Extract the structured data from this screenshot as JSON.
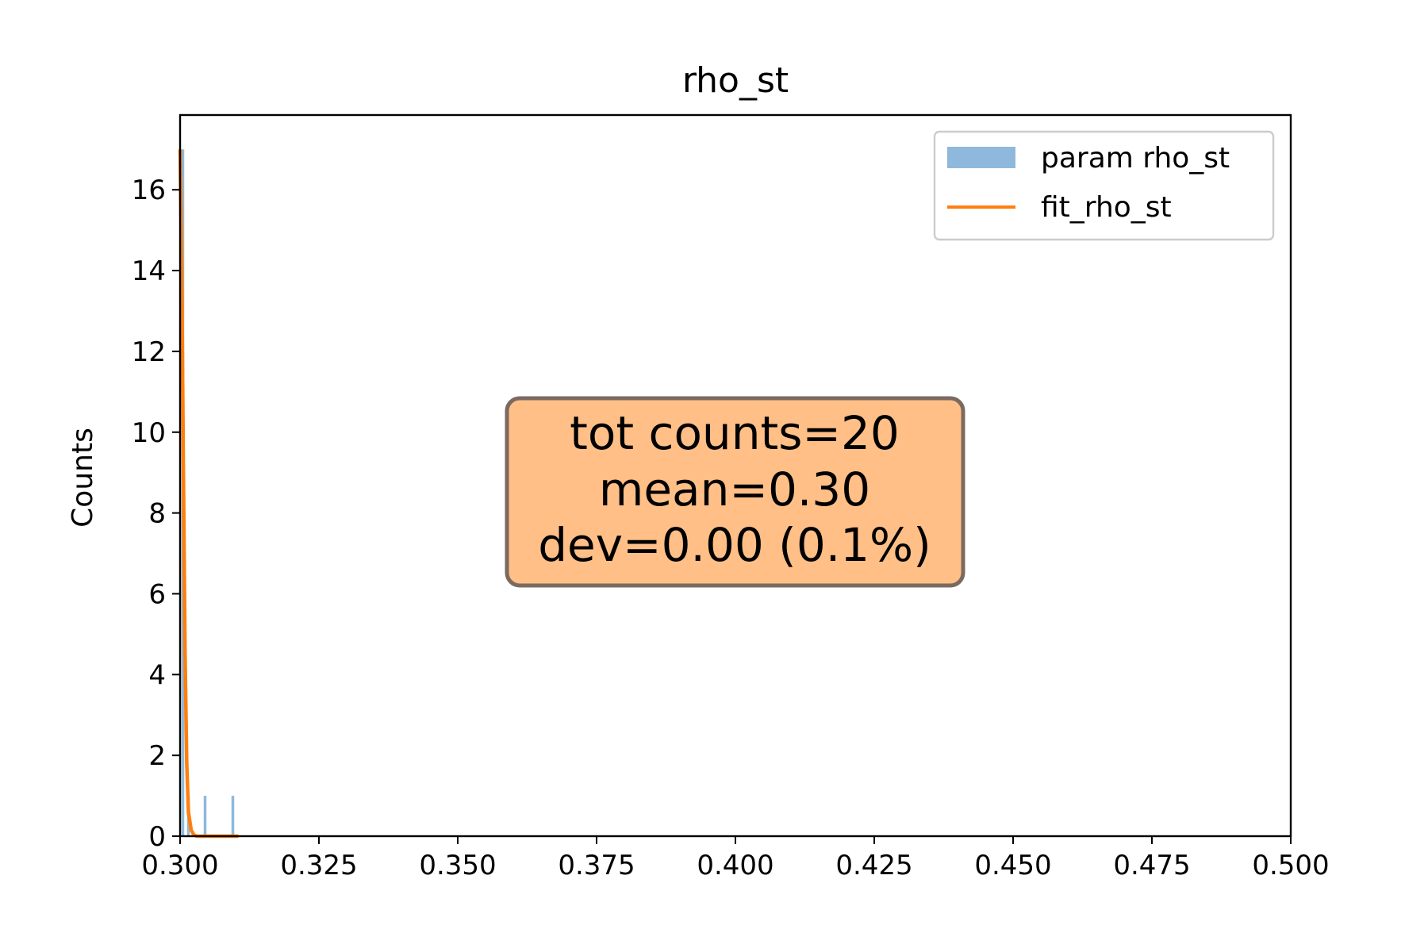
{
  "chart_data": {
    "type": "bar",
    "title": "rho_st",
    "xlabel": "",
    "ylabel": "Counts",
    "xlim": [
      0.3,
      0.5
    ],
    "ylim": [
      0,
      17.85
    ],
    "x_ticks": [
      0.3,
      0.325,
      0.35,
      0.375,
      0.4,
      0.425,
      0.45,
      0.475,
      0.5
    ],
    "x_tick_labels": [
      "0.300",
      "0.325",
      "0.350",
      "0.375",
      "0.400",
      "0.425",
      "0.450",
      "0.475",
      "0.500"
    ],
    "y_ticks": [
      0,
      2,
      4,
      6,
      8,
      10,
      12,
      14,
      16
    ],
    "y_tick_labels": [
      "0",
      "2",
      "4",
      "6",
      "8",
      "10",
      "12",
      "14",
      "16"
    ],
    "grid": false,
    "legend_position": "top-right",
    "series": [
      {
        "name": "param rho_st",
        "kind": "histogram",
        "color": "#8fb9dc",
        "bin_width": 0.0005,
        "bins": [
          {
            "x": 0.3005,
            "count": 17
          },
          {
            "x": 0.3015,
            "count": 1
          },
          {
            "x": 0.3045,
            "count": 1
          },
          {
            "x": 0.3095,
            "count": 1
          }
        ]
      },
      {
        "name": "fit_rho_st",
        "kind": "line",
        "color": "#ff7f0e",
        "points": [
          [
            0.3,
            17.0
          ],
          [
            0.3003,
            14.0
          ],
          [
            0.3006,
            9.0
          ],
          [
            0.3009,
            4.5
          ],
          [
            0.3012,
            1.8
          ],
          [
            0.3015,
            0.6
          ],
          [
            0.302,
            0.15
          ],
          [
            0.3025,
            0.03
          ],
          [
            0.303,
            0.0
          ],
          [
            0.305,
            0.0
          ],
          [
            0.308,
            0.0
          ],
          [
            0.3105,
            0.0
          ]
        ]
      }
    ],
    "annotation": {
      "lines": [
        "tot counts=20",
        "mean=0.30",
        "dev=0.00 (0.1%)"
      ],
      "fill": "#ffbf87",
      "edge": "#7a6a60"
    }
  }
}
